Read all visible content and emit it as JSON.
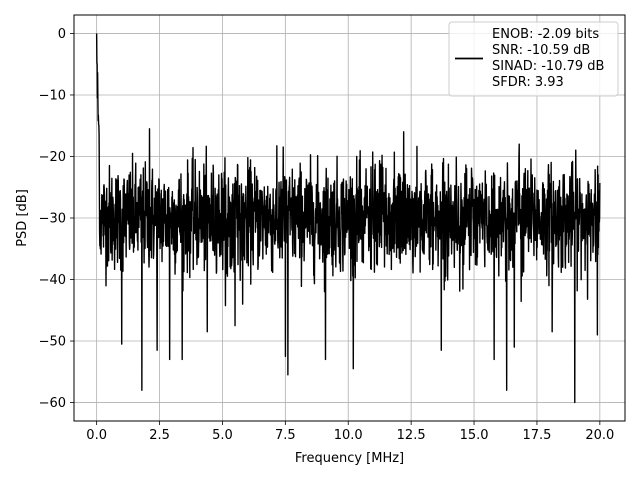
{
  "chart_data": {
    "type": "line",
    "title": "",
    "xlabel": "Frequency [MHz]",
    "ylabel": "PSD [dB]",
    "xlim": [
      -0.9,
      21.0
    ],
    "ylim": [
      -63.0,
      3.0
    ],
    "xticks": [
      0.0,
      2.5,
      5.0,
      7.5,
      10.0,
      12.5,
      15.0,
      17.5,
      20.0
    ],
    "xtick_labels": [
      "0.0",
      "2.5",
      "5.0",
      "7.5",
      "10.0",
      "12.5",
      "15.0",
      "17.5",
      "20.0"
    ],
    "yticks": [
      0,
      -10,
      -20,
      -30,
      -40,
      -50,
      -60
    ],
    "ytick_labels": [
      "0",
      "−10",
      "−20",
      "−30",
      "−40",
      "−50",
      "−60"
    ],
    "grid": true,
    "legend_position": "top-right",
    "legend": [
      "ENOB: -2.09 bits",
      "SNR: -10.59 dB",
      "SINAD: -10.79 dB",
      "SFDR: 3.93"
    ],
    "series": [
      {
        "color": "#000000",
        "description_of_data": "noisy PSD trace, ~2048 points from 0 to 20 MHz; peak 0 dB at 0 MHz, decaying to a noise floor of about -30 dB with spread roughly -18 to -42 dB and dips down to about -60 dB",
        "x_range": [
          0.0,
          20.0
        ],
        "peak": {
          "x": 0.0,
          "y": 0.0
        },
        "initial_decay": [
          {
            "x": 0.0,
            "y": 0.0
          },
          {
            "x": 0.02,
            "y": -8.0
          },
          {
            "x": 0.05,
            "y": -12.0
          },
          {
            "x": 0.1,
            "y": -17.5
          },
          {
            "x": 0.2,
            "y": -22.0
          },
          {
            "x": 0.4,
            "y": -25.0
          }
        ],
        "noise_floor_mean": -30.0,
        "noise_floor_spread": [
          -18.0,
          -42.0
        ],
        "notable_spikes_up": [
          {
            "x": 2.1,
            "y": -15.5
          },
          {
            "x": 12.2,
            "y": -16.0
          },
          {
            "x": 16.8,
            "y": -18.0
          }
        ],
        "notable_dips": [
          {
            "x": 1.0,
            "y": -50.5
          },
          {
            "x": 1.8,
            "y": -58.0
          },
          {
            "x": 2.4,
            "y": -51.5
          },
          {
            "x": 2.9,
            "y": -53.0
          },
          {
            "x": 3.4,
            "y": -53.0
          },
          {
            "x": 4.4,
            "y": -48.5
          },
          {
            "x": 5.5,
            "y": -47.5
          },
          {
            "x": 7.5,
            "y": -52.5
          },
          {
            "x": 7.6,
            "y": -55.5
          },
          {
            "x": 9.1,
            "y": -53.0
          },
          {
            "x": 10.2,
            "y": -54.5
          },
          {
            "x": 12.2,
            "y": -50.0
          },
          {
            "x": 13.7,
            "y": -51.5
          },
          {
            "x": 15.8,
            "y": -53.0
          },
          {
            "x": 16.3,
            "y": -58.0
          },
          {
            "x": 16.6,
            "y": -51.0
          },
          {
            "x": 18.1,
            "y": -48.5
          },
          {
            "x": 19.0,
            "y": -60.0
          },
          {
            "x": 19.9,
            "y": -49.0
          }
        ]
      }
    ]
  }
}
